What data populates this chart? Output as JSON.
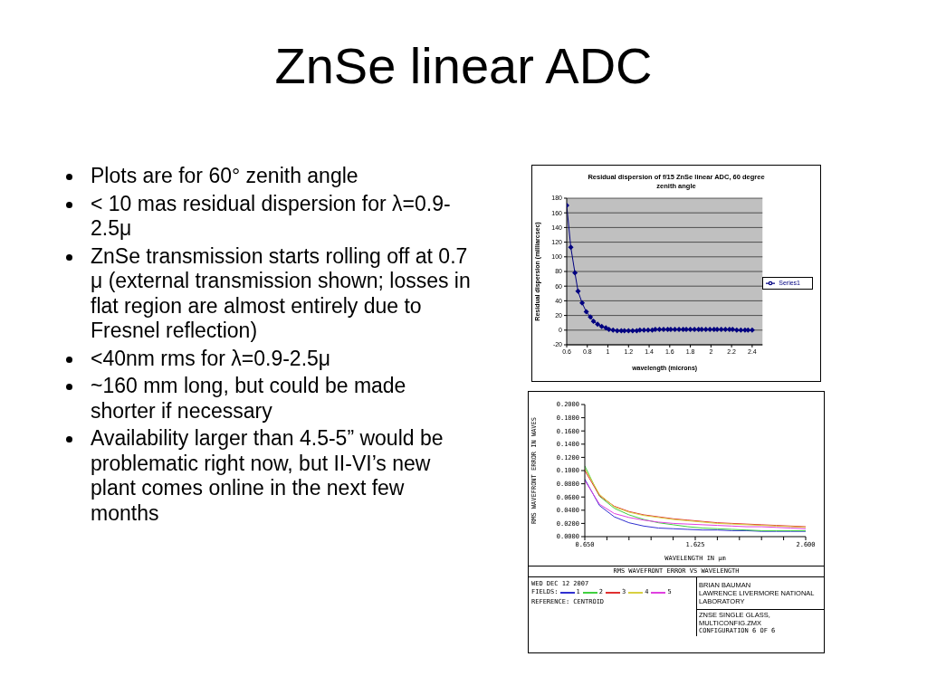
{
  "chart_data": [
    {
      "type": "other",
      "title": "ZnSe linear ADC",
      "annotations": [
        "Plots are for 60° zenith angle",
        "< 10 mas residual dispersion for λ=0.9-2.5μ",
        "ZnSe transmission starts rolling off at 0.7 μ (external transmission shown; losses in flat region are almost entirely due to Fresnel reflection)",
        "<40nm rms for λ=0.9-2.5μ",
        "~160 mm long, but could be made shorter if necessary",
        "Availability larger than 4.5-5” would be problematic right now, but II-VI’s new plant comes online in the next few months"
      ]
    },
    {
      "type": "line",
      "title": "Residual dispersion of f/15 ZnSe linear ADC, 60 degree zenith angle",
      "xlabel": "wavelength (microns)",
      "ylabel": "Residual dispersion (milliarcsec)",
      "x": [
        0.6,
        0.64,
        0.68,
        0.71,
        0.75,
        0.79,
        0.83,
        0.86,
        0.9,
        0.94,
        0.98,
        1.01,
        1.05,
        1.09,
        1.13,
        1.16,
        1.2,
        1.24,
        1.28,
        1.31,
        1.35,
        1.39,
        1.43,
        1.46,
        1.5,
        1.54,
        1.58,
        1.61,
        1.65,
        1.69,
        1.73,
        1.76,
        1.8,
        1.84,
        1.88,
        1.91,
        1.95,
        1.99,
        2.03,
        2.06,
        2.1,
        2.14,
        2.18,
        2.21,
        2.25,
        2.29,
        2.33,
        2.36,
        2.4
      ],
      "series": [
        {
          "name": "Series1",
          "color": "#000080",
          "values": [
            170,
            113,
            78,
            53,
            37,
            25,
            18,
            12,
            8,
            5,
            3,
            1,
            0,
            -1,
            -1,
            -1,
            -1,
            -1,
            -1,
            0,
            0,
            0,
            0,
            1,
            1,
            1,
            1,
            1,
            1,
            1,
            1,
            1,
            1,
            1,
            1,
            1,
            1,
            1,
            1,
            1,
            1,
            1,
            1,
            1,
            0,
            0,
            0,
            0,
            0
          ]
        }
      ],
      "xlim": [
        0.6,
        2.5
      ],
      "xticks": [
        0.6,
        0.8,
        1,
        1.2,
        1.4,
        1.6,
        1.8,
        2,
        2.2,
        2.4
      ],
      "ylim": [
        -20,
        180
      ],
      "yticks": [
        -20,
        0,
        20,
        40,
        60,
        80,
        100,
        120,
        140,
        160,
        180
      ],
      "grid": "y",
      "legend": "right",
      "marker": "diamond"
    },
    {
      "type": "line",
      "title": "RMS WAVEFRONT ERROR VS WAVELENGTH",
      "xlabel": "WAVELENGTH IN µm",
      "ylabel": "RMS WAVEFRONT ERROR IN WAVES",
      "legend_title": "FIELDS:",
      "x": [
        0.65,
        0.78,
        0.91,
        1.04,
        1.17,
        1.3,
        1.43,
        1.56,
        1.69,
        1.82,
        1.95,
        2.08,
        2.21,
        2.34,
        2.47,
        2.6
      ],
      "series": [
        {
          "name": "1",
          "color": "#3030d0",
          "values": [
            0.087,
            0.047,
            0.03,
            0.021,
            0.016,
            0.013,
            0.012,
            0.011,
            0.01,
            0.01,
            0.009,
            0.009,
            0.008,
            0.008,
            0.008,
            0.008
          ]
        },
        {
          "name": "2",
          "color": "#40d040",
          "values": [
            0.107,
            0.061,
            0.043,
            0.033,
            0.026,
            0.021,
            0.018,
            0.015,
            0.013,
            0.012,
            0.011,
            0.01,
            0.009,
            0.009,
            0.009,
            0.009
          ]
        },
        {
          "name": "3",
          "color": "#e03030",
          "values": [
            0.1,
            0.062,
            0.046,
            0.038,
            0.033,
            0.03,
            0.027,
            0.025,
            0.023,
            0.021,
            0.02,
            0.019,
            0.018,
            0.017,
            0.016,
            0.015
          ]
        },
        {
          "name": "4",
          "color": "#d8d040",
          "values": [
            0.103,
            0.064,
            0.045,
            0.037,
            0.032,
            0.029,
            0.026,
            0.024,
            0.022,
            0.02,
            0.019,
            0.018,
            0.017,
            0.016,
            0.015,
            0.014
          ]
        },
        {
          "name": "5",
          "color": "#e040e0",
          "values": [
            0.085,
            0.049,
            0.035,
            0.029,
            0.025,
            0.022,
            0.02,
            0.019,
            0.018,
            0.017,
            0.016,
            0.015,
            0.015,
            0.014,
            0.013,
            0.012
          ]
        }
      ],
      "xlim": [
        0.65,
        2.6
      ],
      "xticks": [
        {
          "value": 0.65,
          "label": "0.650"
        },
        {
          "value": 0.845,
          "label": null
        },
        {
          "value": 1.04,
          "label": null
        },
        {
          "value": 1.235,
          "label": null
        },
        {
          "value": 1.43,
          "label": null
        },
        {
          "value": 1.625,
          "label": "1.625"
        },
        {
          "value": 1.82,
          "label": null
        },
        {
          "value": 2.015,
          "label": null
        },
        {
          "value": 2.21,
          "label": null
        },
        {
          "value": 2.405,
          "label": null
        },
        {
          "value": 2.6,
          "label": "2.600"
        }
      ],
      "ylim": [
        0,
        0.2
      ],
      "yticks": [
        {
          "value": 0,
          "label": "0.0000"
        },
        {
          "value": 0.02,
          "label": "0.0200"
        },
        {
          "value": 0.04,
          "label": "0.0400"
        },
        {
          "value": 0.06,
          "label": "0.0600"
        },
        {
          "value": 0.08,
          "label": "0.0800"
        },
        {
          "value": 0.1,
          "label": "0.1000"
        },
        {
          "value": 0.12,
          "label": "0.1200"
        },
        {
          "value": 0.14,
          "label": "0.1400"
        },
        {
          "value": 0.16,
          "label": "0.1600"
        },
        {
          "value": 0.18,
          "label": "0.1800"
        },
        {
          "value": 0.2,
          "label": "0.2000"
        }
      ],
      "legend": "bottom",
      "marker": "none",
      "annotations": [
        "WED DEC 12 2007",
        "REFERENCE: CENTROID",
        "BRIAN BAUMAN",
        "LAWRENCE LIVERMORE NATIONAL LABORATORY",
        "ZNSE SINGLE GLASS, MULTICONFIG.ZMX",
        "CONFIGURATION 6 OF 6"
      ]
    }
  ]
}
